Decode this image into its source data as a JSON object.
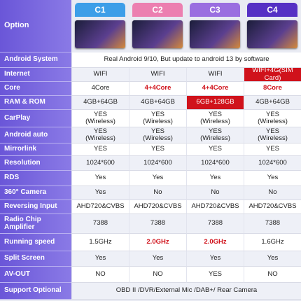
{
  "header": {
    "title": "Option",
    "columns": [
      {
        "text": "C1",
        "color": "#3d9ee8"
      },
      {
        "text": "C2",
        "color": "#ec7fb0"
      },
      {
        "text": "C3",
        "color": "#9a6ee0"
      },
      {
        "text": "C4",
        "color": "#5530c4"
      }
    ]
  },
  "table": {
    "rows": [
      {
        "label": "Android System",
        "span": "Real Android 9/10, But update to android 13 by software"
      },
      {
        "label": "Internet",
        "cells": [
          {
            "text": "WIFI"
          },
          {
            "text": "WIFI"
          },
          {
            "text": "WIFI"
          },
          {
            "text": "WIFI+4G(SIM Card)",
            "bg": "#d0121b"
          }
        ]
      },
      {
        "label": "Core",
        "cells": [
          {
            "text": "4Core"
          },
          {
            "text": "4+4Core",
            "color": "#d0121b"
          },
          {
            "text": "4+4Core",
            "color": "#d0121b"
          },
          {
            "text": "8Core",
            "color": "#d0121b"
          }
        ]
      },
      {
        "label": "RAM & ROM",
        "cells": [
          {
            "text": "4GB+64GB"
          },
          {
            "text": "4GB+64GB"
          },
          {
            "text": "6GB+128GB",
            "bg": "#d0121b"
          },
          {
            "text": "4GB+64GB"
          }
        ]
      },
      {
        "label": "CarPlay",
        "cells": [
          {
            "text": "YES\n(Wireless)"
          },
          {
            "text": "YES\n(Wireless)"
          },
          {
            "text": "YES\n(Wireless)"
          },
          {
            "text": "YES\n(Wireless)"
          }
        ]
      },
      {
        "label": "Android auto",
        "cells": [
          {
            "text": "YES\n(Wireless)"
          },
          {
            "text": "YES\n(Wireless)"
          },
          {
            "text": "YES\n(Wireless)"
          },
          {
            "text": "YES\n(Wireless)"
          }
        ]
      },
      {
        "label": "Mirrorlink",
        "cells": [
          {
            "text": "YES"
          },
          {
            "text": "YES"
          },
          {
            "text": "YES"
          },
          {
            "text": "YES"
          }
        ]
      },
      {
        "label": "Resolution",
        "cells": [
          {
            "text": "1024*600"
          },
          {
            "text": "1024*600"
          },
          {
            "text": "1024*600"
          },
          {
            "text": "1024*600"
          }
        ]
      },
      {
        "label": "RDS",
        "cells": [
          {
            "text": "Yes"
          },
          {
            "text": "Yes"
          },
          {
            "text": "Yes"
          },
          {
            "text": "Yes"
          }
        ]
      },
      {
        "label": "360° Camera",
        "cells": [
          {
            "text": "Yes"
          },
          {
            "text": "No"
          },
          {
            "text": "No"
          },
          {
            "text": "No"
          }
        ]
      },
      {
        "label": "Reversing Input",
        "cells": [
          {
            "text": "AHD720&CVBS"
          },
          {
            "text": "AHD720&CVBS"
          },
          {
            "text": "AHD720&CVBS"
          },
          {
            "text": "AHD720&CVBS"
          }
        ]
      },
      {
        "label": "Radio Chip\nAmplifier",
        "cells": [
          {
            "text": "7388"
          },
          {
            "text": "7388"
          },
          {
            "text": "7388"
          },
          {
            "text": "7388"
          }
        ]
      },
      {
        "label": "Running speed",
        "cells": [
          {
            "text": "1.5GHz"
          },
          {
            "text": "2.0GHz",
            "color": "#d0121b"
          },
          {
            "text": "2.0GHz",
            "color": "#d0121b"
          },
          {
            "text": "1.6GHz"
          }
        ]
      },
      {
        "label": "Split Screen",
        "cells": [
          {
            "text": "Yes"
          },
          {
            "text": "Yes"
          },
          {
            "text": "Yes"
          },
          {
            "text": "Yes"
          }
        ]
      },
      {
        "label": "AV-OUT",
        "cells": [
          {
            "text": "NO"
          },
          {
            "text": "NO"
          },
          {
            "text": "YES"
          },
          {
            "text": "NO"
          }
        ]
      },
      {
        "label": "Support Optional",
        "span": "OBD II /DVR/External Mic /DAB+/ Rear Camera"
      }
    ]
  }
}
